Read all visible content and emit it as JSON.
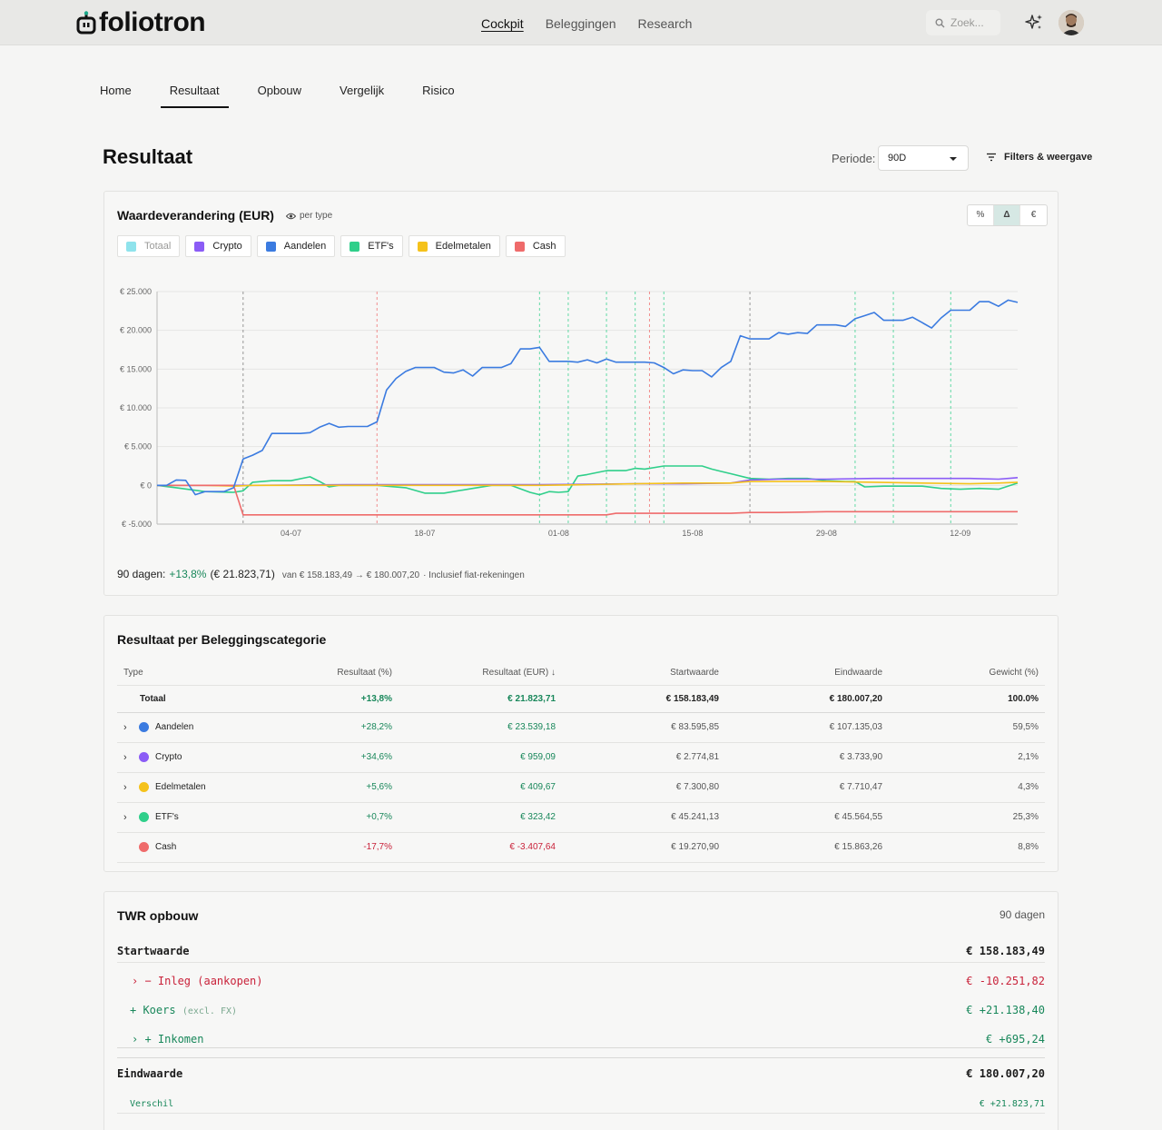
{
  "app": {
    "logo": "foliotron"
  },
  "nav": {
    "items": [
      "Cockpit",
      "Beleggingen",
      "Research"
    ]
  },
  "search": {
    "placeholder": "Zoek..."
  },
  "tabs": [
    "Home",
    "Resultaat",
    "Opbouw",
    "Vergelijk",
    "Risico"
  ],
  "page": {
    "title": "Resultaat",
    "periode_label": "Periode:",
    "periode_value": "90D",
    "filters_label": "Filters & weergave"
  },
  "colors": {
    "totaal": "#8fe3ec",
    "crypto": "#8b5cf6",
    "aandelen": "#3b7be0",
    "etfs": "#2fcf8a",
    "edelmetalen": "#f5c21b",
    "cash": "#ef6b6b",
    "positive": "#18875a",
    "negative": "#c9223a"
  },
  "chart_card": {
    "title": "Waardeverandering (EUR)",
    "per_type": "per type",
    "toggles": [
      "%",
      "Δ",
      "€"
    ],
    "legend": [
      "Totaal",
      "Crypto",
      "Aandelen",
      "ETF's",
      "Edelmetalen",
      "Cash"
    ],
    "summary": {
      "label": "90 dagen:",
      "pct": "+13,8%",
      "eur": "(€ 21.823,71)",
      "range": "van € 158.183,49 → € 180.007,20",
      "note": "· Inclusief fiat-rekeningen"
    }
  },
  "chart_data": {
    "type": "line",
    "ylim": [
      -5000,
      25000
    ],
    "yticks": [
      "€ 25.000",
      "€ 20.000",
      "€ 15.000",
      "€ 10.000",
      "€ 5.000",
      "€ 0",
      "€ -5.000"
    ],
    "ytick_values": [
      25000,
      20000,
      15000,
      10000,
      5000,
      0,
      -5000
    ],
    "x_tick_labels": [
      "04-07",
      "18-07",
      "01-08",
      "15-08",
      "29-08",
      "12-09"
    ],
    "x_tick_days": [
      14,
      28,
      42,
      56,
      70,
      84
    ],
    "x_range": [
      0,
      90
    ],
    "event_markers": [
      {
        "day": 9,
        "color": "#777"
      },
      {
        "day": 23,
        "color": "#ef6b6b"
      },
      {
        "day": 40,
        "color": "#2fcf8a"
      },
      {
        "day": 43,
        "color": "#2fcf8a"
      },
      {
        "day": 47,
        "color": "#2fcf8a"
      },
      {
        "day": 50,
        "color": "#2fcf8a"
      },
      {
        "day": 51.5,
        "color": "#ef6b6b"
      },
      {
        "day": 53,
        "color": "#2fcf8a"
      },
      {
        "day": 62,
        "color": "#777"
      },
      {
        "day": 73,
        "color": "#2fcf8a"
      },
      {
        "day": 77,
        "color": "#2fcf8a"
      },
      {
        "day": 83,
        "color": "#2fcf8a"
      }
    ],
    "series": [
      {
        "name": "Aandelen",
        "color": "#3b7be0",
        "x": [
          0,
          1,
          2,
          3,
          4,
          5,
          6,
          7,
          8,
          9,
          10,
          11,
          12,
          13,
          14,
          15,
          16,
          17,
          18,
          19,
          20,
          21,
          22,
          23,
          24,
          25,
          26,
          27,
          28,
          29,
          30,
          31,
          32,
          33,
          34,
          35,
          36,
          37,
          38,
          39,
          40,
          41,
          42,
          43,
          44,
          45,
          46,
          47,
          48,
          49,
          50,
          51,
          52,
          53,
          54,
          55,
          56,
          57,
          58,
          59,
          60,
          61,
          62,
          63,
          64,
          65,
          66,
          67,
          68,
          69,
          70,
          71,
          72,
          73,
          74,
          75,
          76,
          77,
          78,
          79,
          80,
          81,
          82,
          83,
          84,
          85,
          86,
          87,
          88,
          89,
          90
        ],
        "y": [
          0,
          0,
          700,
          650,
          -1200,
          -800,
          -800,
          -800,
          -300,
          3400,
          3900,
          4500,
          6700,
          6700,
          6700,
          6700,
          6800,
          7500,
          8000,
          7500,
          7600,
          7600,
          7600,
          8200,
          12300,
          13800,
          14700,
          15200,
          15200,
          15200,
          14600,
          14500,
          14900,
          14100,
          15200,
          15200,
          15200,
          15700,
          17600,
          17600,
          17800,
          16000,
          16000,
          16000,
          15900,
          16200,
          15800,
          16300,
          15900,
          15900,
          15900,
          15900,
          15800,
          15200,
          14400,
          14900,
          14800,
          14800,
          14000,
          15200,
          16000,
          19300,
          18900,
          18900,
          18900,
          19700,
          19500,
          19700,
          19600,
          20700,
          20700,
          20700,
          20500,
          21500,
          21900,
          22300,
          21300,
          21300,
          21300,
          21700,
          21000,
          20300,
          21600,
          22600,
          22600,
          22600,
          23700,
          23700,
          23100,
          23900,
          23600
        ]
      },
      {
        "name": "ETF's",
        "color": "#2fcf8a",
        "x": [
          0,
          2,
          5,
          8,
          9,
          10,
          12,
          14,
          16,
          17,
          18,
          19,
          21,
          23,
          26,
          28,
          30,
          33,
          35,
          37,
          39,
          40,
          41,
          42,
          43,
          44,
          45,
          47,
          49,
          50,
          51,
          53,
          55,
          57,
          58,
          59,
          60,
          62,
          64,
          66,
          68,
          70,
          72,
          73,
          74,
          76,
          78,
          80,
          82,
          84,
          86,
          88,
          90
        ],
        "y": [
          0,
          -300,
          -800,
          -900,
          -700,
          400,
          600,
          600,
          1100,
          500,
          -200,
          0,
          0,
          0,
          -300,
          -1000,
          -1000,
          -400,
          0,
          0,
          -900,
          -1200,
          -800,
          -900,
          -800,
          1200,
          1400,
          1900,
          1900,
          2200,
          2100,
          2500,
          2500,
          2500,
          2100,
          1800,
          1500,
          900,
          800,
          900,
          900,
          600,
          500,
          500,
          -200,
          -100,
          -100,
          -100,
          -400,
          -500,
          -400,
          -500,
          300
        ]
      },
      {
        "name": "Crypto",
        "color": "#8b5cf6",
        "x": [
          0,
          5,
          10,
          20,
          30,
          40,
          50,
          55,
          60,
          62,
          65,
          70,
          75,
          80,
          85,
          88,
          89,
          90
        ],
        "y": [
          0,
          0,
          0,
          100,
          100,
          100,
          200,
          200,
          300,
          700,
          800,
          800,
          900,
          900,
          900,
          800,
          900,
          1000
        ]
      },
      {
        "name": "Edelmetalen",
        "color": "#f5c21b",
        "x": [
          0,
          5,
          8,
          10,
          20,
          30,
          40,
          45,
          50,
          55,
          60,
          62,
          65,
          70,
          75,
          80,
          85,
          88,
          90
        ],
        "y": [
          0,
          0,
          -100,
          0,
          0,
          0,
          0,
          100,
          200,
          300,
          300,
          500,
          500,
          500,
          400,
          300,
          200,
          300,
          400
        ]
      },
      {
        "name": "Cash",
        "color": "#ef6b6b",
        "x": [
          0,
          8,
          9,
          20,
          30,
          40,
          47,
          48,
          55,
          60,
          62,
          65,
          70,
          75,
          80,
          85,
          90
        ],
        "y": [
          0,
          0,
          -3800,
          -3800,
          -3800,
          -3800,
          -3800,
          -3600,
          -3600,
          -3600,
          -3500,
          -3500,
          -3400,
          -3400,
          -3400,
          -3400,
          -3400
        ]
      }
    ]
  },
  "category_table": {
    "title": "Resultaat per Beleggingscategorie",
    "headers": [
      "Type",
      "Resultaat (%)",
      "Resultaat (EUR) ↓",
      "Startwaarde",
      "Eindwaarde",
      "Gewicht (%)"
    ],
    "total": {
      "type": "Totaal",
      "pct": "+13,8%",
      "eur": "€ 21.823,71",
      "start": "€ 158.183,49",
      "end": "€ 180.007,20",
      "weight": "100.0%"
    },
    "rows": [
      {
        "type": "Aandelen",
        "color": "#3b7be0",
        "expand": "›",
        "pct": "+28,2%",
        "eur": "€ 23.539,18",
        "start": "€ 83.595,85",
        "end": "€ 107.135,03",
        "weight": "59,5%"
      },
      {
        "type": "Crypto",
        "color": "#8b5cf6",
        "expand": "›",
        "pct": "+34,6%",
        "eur": "€ 959,09",
        "start": "€ 2.774,81",
        "end": "€ 3.733,90",
        "weight": "2,1%"
      },
      {
        "type": "Edelmetalen",
        "color": "#f5c21b",
        "expand": "›",
        "pct": "+5,6%",
        "eur": "€ 409,67",
        "start": "€ 7.300,80",
        "end": "€ 7.710,47",
        "weight": "4,3%"
      },
      {
        "type": "ETF's",
        "color": "#2fcf8a",
        "expand": "›",
        "pct": "+0,7%",
        "eur": "€ 323,42",
        "start": "€ 45.241,13",
        "end": "€ 45.564,55",
        "weight": "25,3%"
      },
      {
        "type": "Cash",
        "color": "#ef6b6b",
        "expand": "",
        "pct": "-17,7%",
        "eur": "€ -3.407,64",
        "start": "€ 19.270,90",
        "end": "€ 15.863,26",
        "weight": "8,8%"
      }
    ]
  },
  "twr": {
    "title": "TWR opbouw",
    "days": "90 dagen",
    "start_label": "Startwaarde",
    "start_value": "€ 158.183,49",
    "inleg_label": "› − Inleg (aankopen)",
    "inleg_value": "€ -10.251,82",
    "koers_label": "+ Koers",
    "koers_sub": "(excl. FX)",
    "koers_value": "€ +21.138,40",
    "inkomen_label": "› + Inkomen",
    "inkomen_value": "€ +695,24",
    "end_label": "Eindwaarde",
    "end_value": "€ 180.007,20",
    "diff_label": "Verschil",
    "diff_value": "€ +21.823,71"
  }
}
